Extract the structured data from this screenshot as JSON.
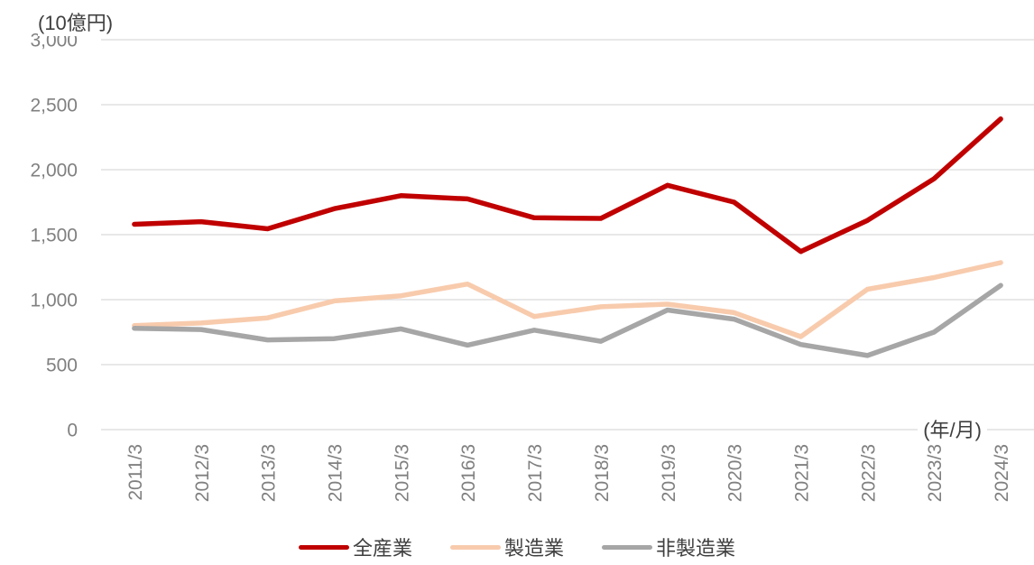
{
  "chart_data": {
    "type": "line",
    "title": "",
    "ylabel": "(10億円)",
    "xlabel": "(年/月)",
    "ylim": [
      0,
      3000
    ],
    "ytick_step": 500,
    "yticks": [
      "0",
      "500",
      "1,000",
      "1,500",
      "2,000",
      "2,500",
      "3,000"
    ],
    "grid": true,
    "legend_position": "bottom",
    "background_color": "#ffffff",
    "gridline_color": "#d9d9d9",
    "tick_label_color": "#808080",
    "axis_title_color": "#3f3f3f",
    "categories": [
      "2011/3",
      "2012/3",
      "2013/3",
      "2014/3",
      "2015/3",
      "2016/3",
      "2017/3",
      "2018/3",
      "2019/3",
      "2020/3",
      "2021/3",
      "2022/3",
      "2023/3",
      "2024/3"
    ],
    "series": [
      {
        "name": "全産業",
        "id": "all-industries",
        "color": "#C00000",
        "values": [
          1580,
          1600,
          1545,
          1700,
          1800,
          1775,
          1630,
          1625,
          1880,
          1750,
          1370,
          1610,
          1930,
          2390
        ]
      },
      {
        "name": "製造業",
        "id": "manufacturing",
        "color": "#F8CBAD",
        "values": [
          800,
          820,
          860,
          990,
          1030,
          1120,
          870,
          945,
          965,
          900,
          715,
          1080,
          1170,
          1285
        ]
      },
      {
        "name": "非製造業",
        "id": "non-manufacturing",
        "color": "#A6A6A6",
        "values": [
          780,
          770,
          690,
          700,
          775,
          650,
          765,
          680,
          920,
          850,
          655,
          570,
          750,
          1110
        ]
      }
    ]
  }
}
